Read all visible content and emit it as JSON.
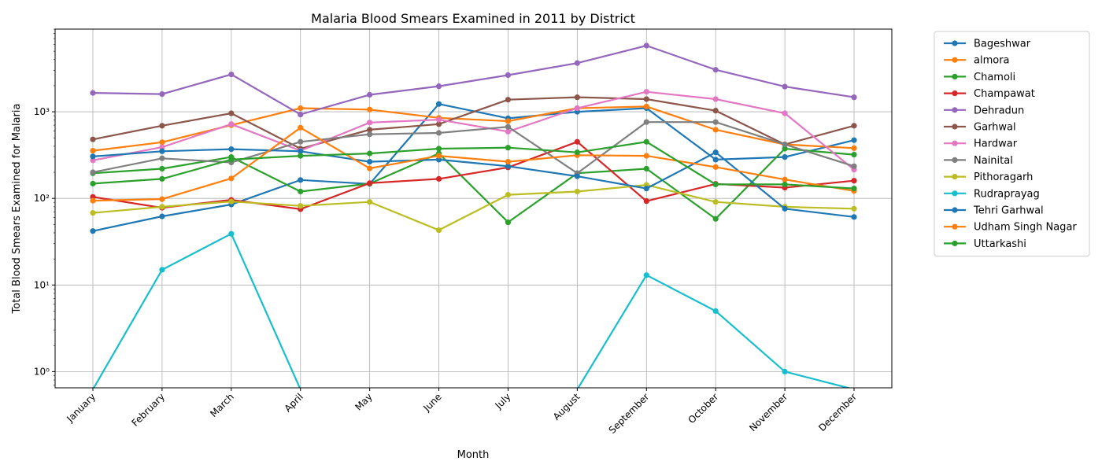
{
  "chart_data": {
    "type": "line",
    "title": "Malaria Blood Smears Examined in 2011 by District",
    "xlabel": "Month",
    "ylabel": "Total Blood Smears Examined for Malaria",
    "yscale": "log",
    "ylim": [
      0.65,
      9000
    ],
    "grid": true,
    "legend_position": "outside-right",
    "categories": [
      "January",
      "February",
      "March",
      "April",
      "May",
      "June",
      "July",
      "August",
      "September",
      "October",
      "November",
      "December"
    ],
    "y_ticks": [
      {
        "value": 1,
        "label": "10⁰"
      },
      {
        "value": 10,
        "label": "10¹"
      },
      {
        "value": 100,
        "label": "10²"
      },
      {
        "value": 1000,
        "label": "10³"
      }
    ],
    "series": [
      {
        "name": "Bageshwar",
        "color": "#1f77b4",
        "values": [
          42,
          62,
          85,
          163,
          147,
          1230,
          840,
          1000,
          1100,
          280,
          300,
          470
        ]
      },
      {
        "name": "almora",
        "color": "#ff7f0e",
        "values": [
          355,
          445,
          700,
          1100,
          1060,
          850,
          780,
          1100,
          1150,
          620,
          420,
          380
        ]
      },
      {
        "name": "Chamoli",
        "color": "#2ca02c",
        "values": [
          195,
          220,
          300,
          120,
          148,
          330,
          53,
          195,
          220,
          58,
          375,
          320
        ]
      },
      {
        "name": "Champawat",
        "color": "#d62728",
        "values": [
          104,
          78,
          96,
          75,
          150,
          168,
          228,
          450,
          93,
          147,
          133,
          160
        ]
      },
      {
        "name": "Dehradun",
        "color": "#9467bd",
        "values": [
          1650,
          1600,
          2700,
          930,
          1570,
          1970,
          2650,
          3650,
          5800,
          3050,
          1950,
          1470
        ]
      },
      {
        "name": "Garhwal",
        "color": "#8c564b",
        "values": [
          480,
          690,
          960,
          375,
          620,
          720,
          1380,
          1470,
          1400,
          1030,
          420,
          690
        ]
      },
      {
        "name": "Hardwar",
        "color": "#e377c2",
        "values": [
          275,
          390,
          720,
          355,
          750,
          810,
          590,
          1100,
          1700,
          1400,
          960,
          215
        ]
      },
      {
        "name": "Nainital",
        "color": "#7f7f7f",
        "values": [
          200,
          290,
          260,
          450,
          550,
          570,
          670,
          195,
          760,
          760,
          420,
          235
        ]
      },
      {
        "name": "Pithoragarh",
        "color": "#bcbd22",
        "values": [
          68,
          80,
          92,
          82,
          91,
          43,
          110,
          120,
          143,
          91,
          80,
          76
        ]
      },
      {
        "name": "Rudraprayag",
        "color": "#17becf",
        "values": [
          0,
          15,
          39,
          0,
          0,
          0,
          0,
          0,
          13,
          5,
          1,
          0
        ]
      },
      {
        "name": "Tehri Garhwal",
        "color": "#1f77b4",
        "values": [
          305,
          350,
          370,
          350,
          265,
          280,
          235,
          180,
          130,
          340,
          76,
          61
        ]
      },
      {
        "name": "Udham Singh Nagar",
        "color": "#ff7f0e",
        "values": [
          94,
          98,
          170,
          655,
          222,
          310,
          265,
          315,
          310,
          230,
          165,
          122
        ]
      },
      {
        "name": "Uttarkashi",
        "color": "#2ca02c",
        "values": [
          148,
          168,
          280,
          310,
          330,
          375,
          385,
          340,
          450,
          145,
          145,
          130
        ]
      }
    ]
  }
}
